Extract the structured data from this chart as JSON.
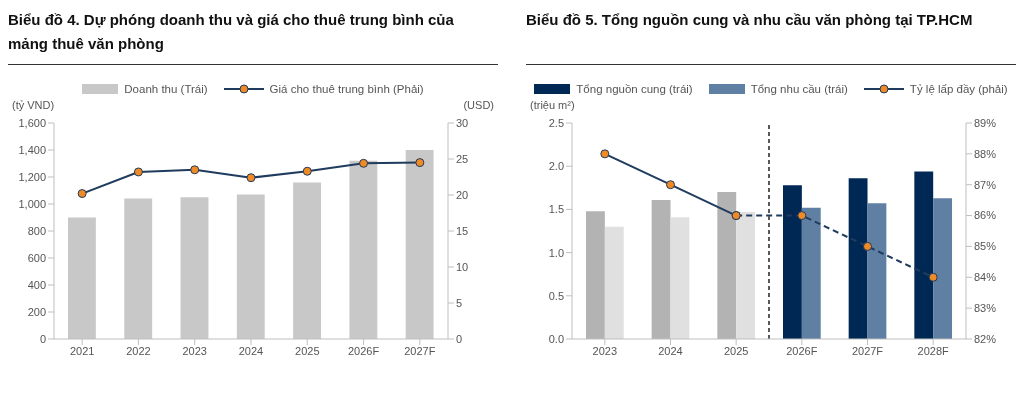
{
  "chart_data": [
    {
      "type": "bar",
      "title": "Biểu đồ 4. Dự phóng doanh thu và giá cho thuê trung bình của mảng thuê văn phòng",
      "ylabel": "(tỷ VND)",
      "y2label": "(USD)",
      "categories": [
        "2021",
        "2022",
        "2023",
        "2024",
        "2025",
        "2026F",
        "2027F"
      ],
      "series": [
        {
          "name": "Doanh thu (Trái)",
          "color": "#c8c8c8",
          "values": [
            900,
            1040,
            1050,
            1070,
            1160,
            1320,
            1400
          ]
        },
        {
          "name": "Giá cho thuê trung bình (Phải)",
          "type": "line",
          "axis": "y2",
          "color": "#1f3b5e",
          "values": [
            20.2,
            23.2,
            23.5,
            22.4,
            23.3,
            24.4,
            24.5
          ]
        }
      ],
      "ylim": [
        0,
        1600
      ],
      "yticks": [
        0,
        200,
        400,
        600,
        800,
        {
          "value": 1000,
          "label": "1,000"
        },
        {
          "value": 1200,
          "label": "1,200"
        },
        {
          "value": 1400,
          "label": "1,400"
        },
        {
          "value": 1600,
          "label": "1,600"
        }
      ],
      "y2lim": [
        0,
        30
      ],
      "y2ticks": [
        0,
        5,
        10,
        15,
        20,
        25,
        30
      ],
      "marker": "circle",
      "legend": "top"
    },
    {
      "type": "bar",
      "title": "Biểu đồ 5. Tổng nguồn cung và nhu cầu văn phòng tại TP.HCM",
      "ylabel": "(triệu m²)",
      "categories": [
        "2023",
        "2024",
        "2025",
        "2026F",
        "2027F",
        "2028F"
      ],
      "series": [
        {
          "name": "Tổng nguồn cung (trái)",
          "color": "#002855",
          "colors": [
            "#b3b3b3",
            "#b3b3b3",
            "#b3b3b3",
            "#002855",
            "#002855",
            "#002855"
          ],
          "values": [
            1.48,
            1.61,
            1.7,
            1.78,
            1.86,
            1.94
          ]
        },
        {
          "name": "Tổng nhu cầu (trái)",
          "color": "#5f7fa3",
          "colors": [
            "#e0e0e0",
            "#e0e0e0",
            "#e0e0e0",
            "#5f7fa3",
            "#5f7fa3",
            "#5f7fa3"
          ],
          "values": [
            1.3,
            1.41,
            1.47,
            1.52,
            1.57,
            1.63
          ]
        },
        {
          "name": "Tỷ lệ lấp đầy (phải)",
          "type": "line",
          "axis": "y2",
          "color": "#1f3b5e",
          "line_style": "solid",
          "values": [
            88,
            87,
            86,
            null,
            null,
            null
          ]
        },
        {
          "type": "line",
          "axis": "y2",
          "color": "#1f3b5e",
          "line_style": "dashed",
          "values": [
            null,
            null,
            86,
            86,
            85,
            84
          ]
        }
      ],
      "ylim": [
        0,
        2.5
      ],
      "yticks": [
        {
          "value": 0,
          "label": "0.0"
        },
        0.5,
        {
          "value": 1,
          "label": "1.0"
        },
        1.5,
        {
          "value": 2,
          "label": "2.0"
        },
        2.5
      ],
      "y2lim": [
        82,
        89
      ],
      "y2ticks": [
        {
          "value": 82,
          "label": "82%"
        },
        {
          "value": 83,
          "label": "83%"
        },
        {
          "value": 84,
          "label": "84%"
        },
        {
          "value": 85,
          "label": "85%"
        },
        {
          "value": 86,
          "label": "86%"
        },
        {
          "value": 87,
          "label": "87%"
        },
        {
          "value": 88,
          "label": "88%"
        },
        {
          "value": 89,
          "label": "89%"
        }
      ],
      "marker": "circle",
      "legend": "top"
    }
  ]
}
